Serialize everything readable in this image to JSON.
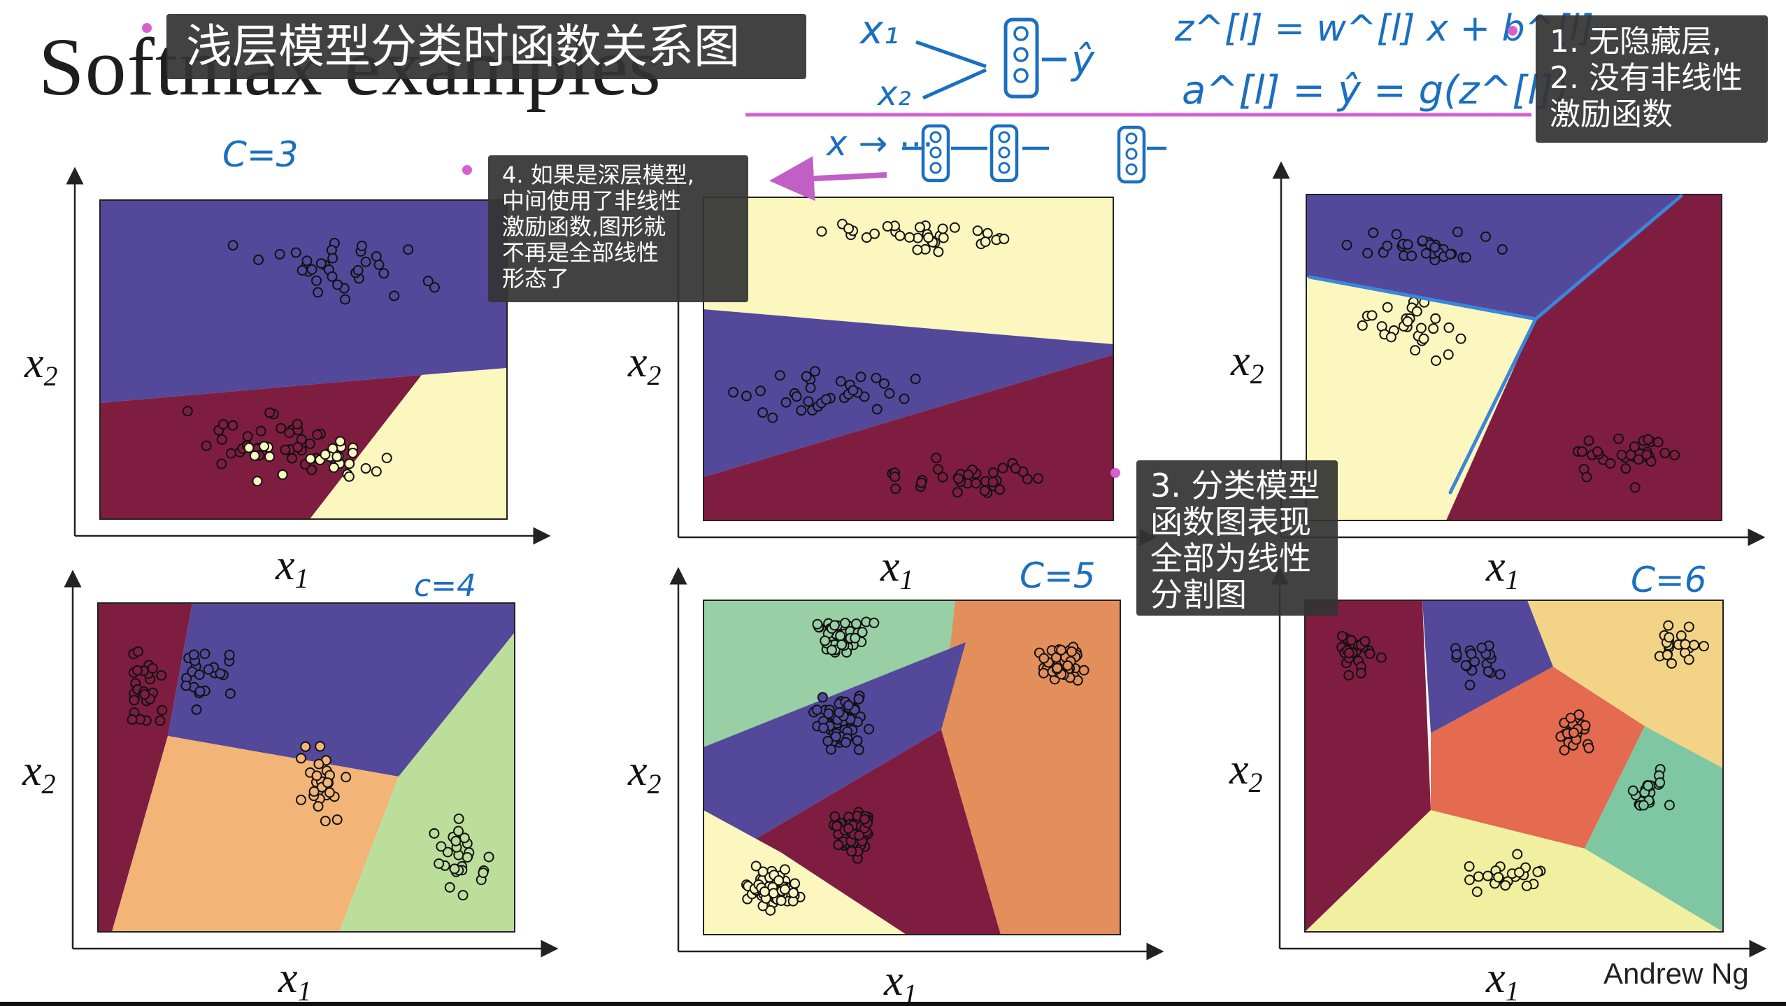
{
  "slide": {
    "title": "Softmax examples",
    "credit": "Andrew Ng"
  },
  "notes": {
    "title": "浅层模型分类时函数关系图",
    "note1": "1. 无隐藏层,\n2. 没有非线性\n激励函数",
    "note3": "3. 分类模型\n函数图表现\n全部为线性\n分割图",
    "note4": "4. 如果是深层模型,\n中间使用了非线性\n激励函数,图形就\n不再是全部线性\n形态了"
  },
  "handwriting": {
    "x1": "x₁",
    "x2": "x₂",
    "yhat": "ŷ",
    "eq1": "z^[l] = w^[l] x + b^[l]",
    "eq2": "a^[l] = ŷ = g(z^[l])",
    "deep": "x → ⋯",
    "labels": [
      "C=3",
      "c=4",
      "C=5",
      "C=6"
    ]
  },
  "colors": {
    "purple": "#54489a",
    "maroon": "#7f1d41",
    "cream": "#fbf7bf",
    "orange": "#f2b477",
    "lightgreen": "#bcde9b",
    "teal": "#98cfa5",
    "burnt": "#e38f5c",
    "coral": "#e46b4f",
    "tealgreen": "#7fc7a2",
    "yellowish": "#f0f0a0",
    "peach": "#f3d487",
    "accent": "#d85fd0",
    "ink": "#1a6fc0"
  },
  "axes": {
    "x": "x1",
    "y": "x2"
  },
  "chart_data": [
    {
      "type": "scatter",
      "subtitle": "C=3",
      "regions": [
        "purple",
        "maroon",
        "cream"
      ]
    },
    {
      "type": "scatter",
      "regions": [
        "cream",
        "purple",
        "maroon"
      ]
    },
    {
      "type": "scatter",
      "regions": [
        "purple",
        "cream",
        "maroon"
      ]
    },
    {
      "type": "scatter",
      "subtitle": "c=4",
      "regions": [
        "maroon",
        "purple",
        "orange",
        "lightgreen"
      ]
    },
    {
      "type": "scatter",
      "subtitle": "C=5",
      "regions": [
        "teal",
        "burnt",
        "purple",
        "maroon",
        "cream"
      ]
    },
    {
      "type": "scatter",
      "subtitle": "C=6",
      "regions": [
        "maroon",
        "purple",
        "peach",
        "coral",
        "tealgreen",
        "yellowish"
      ]
    }
  ]
}
